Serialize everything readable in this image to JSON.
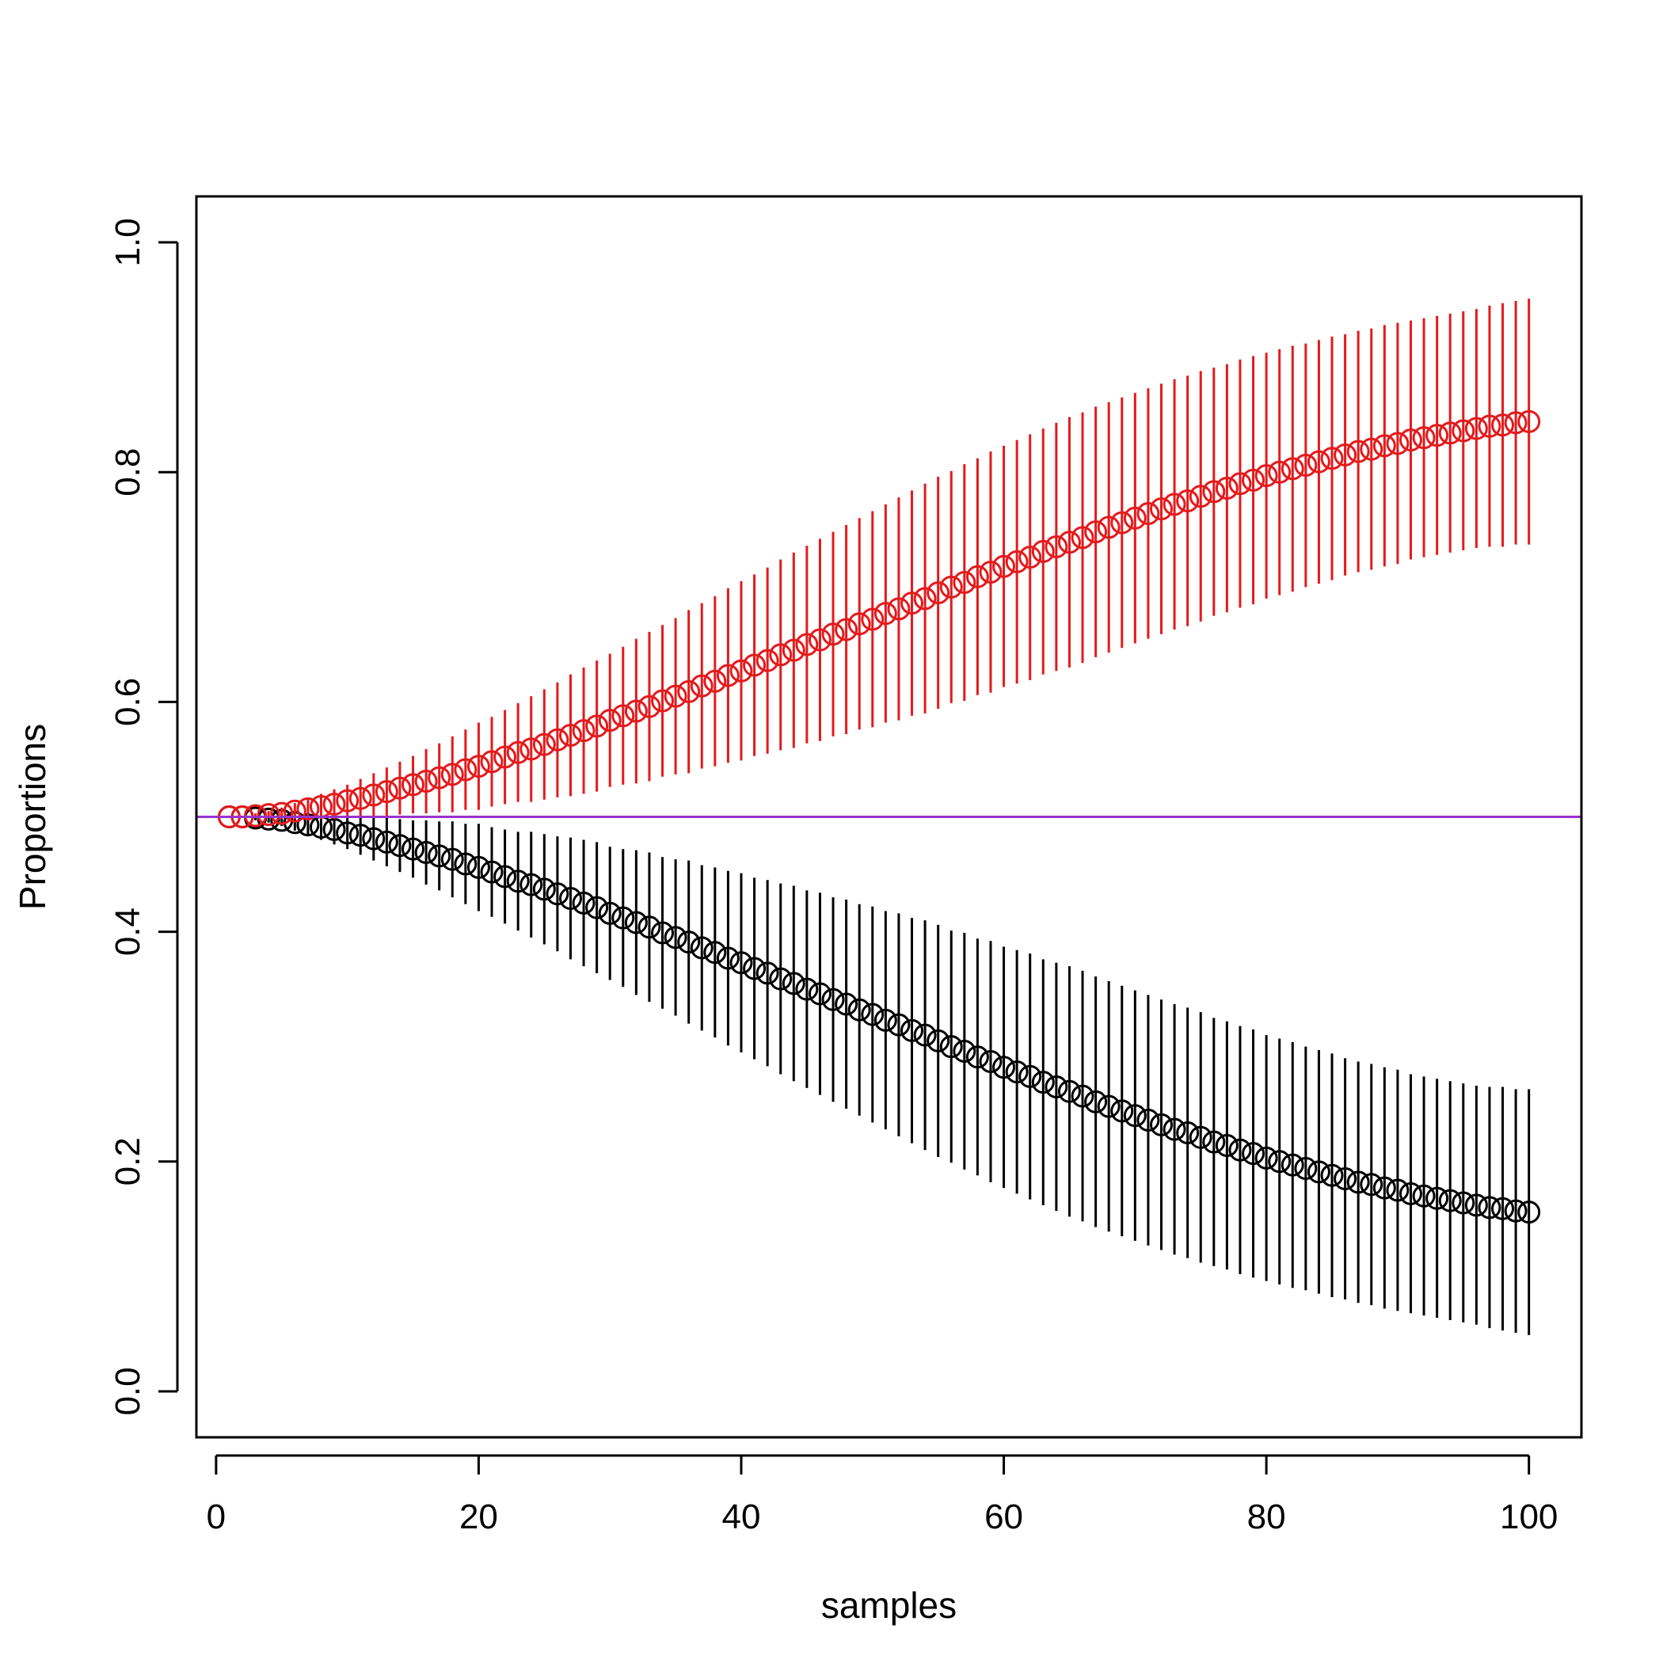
{
  "chart_data": {
    "type": "scatter",
    "xlabel": "samples",
    "ylabel": "Proportions",
    "xlim": [
      -1.5,
      104
    ],
    "ylim": [
      -0.04,
      1.04
    ],
    "x_ticks": [
      0,
      20,
      40,
      60,
      80,
      100
    ],
    "y_ticks": [
      0.0,
      0.2,
      0.4,
      0.6,
      0.8,
      1.0
    ],
    "x_tick_labels": [
      "0",
      "20",
      "40",
      "60",
      "80",
      "100"
    ],
    "y_tick_labels": [
      "0.0",
      "0.2",
      "0.4",
      "0.6",
      "0.8",
      "1.0"
    ],
    "grid": false,
    "reference_line": {
      "y": 0.5,
      "color": "#9933CC"
    },
    "x": [
      1,
      2,
      3,
      4,
      5,
      6,
      7,
      8,
      9,
      10,
      11,
      12,
      13,
      14,
      15,
      16,
      17,
      18,
      19,
      20,
      21,
      22,
      23,
      24,
      25,
      26,
      27,
      28,
      29,
      30,
      31,
      32,
      33,
      34,
      35,
      36,
      37,
      38,
      39,
      40,
      41,
      42,
      43,
      44,
      45,
      46,
      47,
      48,
      49,
      50,
      51,
      52,
      53,
      54,
      55,
      56,
      57,
      58,
      59,
      60,
      61,
      62,
      63,
      64,
      65,
      66,
      67,
      68,
      69,
      70,
      71,
      72,
      73,
      74,
      75,
      76,
      77,
      78,
      79,
      80,
      81,
      82,
      83,
      84,
      85,
      86,
      87,
      88,
      89,
      90,
      91,
      92,
      93,
      94,
      95,
      96,
      97,
      98,
      99,
      100
    ],
    "series": [
      {
        "color": "#000000",
        "values": [
          0.5,
          0.5,
          0.499,
          0.498,
          0.497,
          0.495,
          0.493,
          0.491,
          0.489,
          0.486,
          0.484,
          0.481,
          0.478,
          0.475,
          0.472,
          0.469,
          0.466,
          0.463,
          0.459,
          0.456,
          0.452,
          0.448,
          0.444,
          0.441,
          0.437,
          0.433,
          0.429,
          0.425,
          0.421,
          0.416,
          0.412,
          0.408,
          0.404,
          0.399,
          0.395,
          0.391,
          0.386,
          0.382,
          0.377,
          0.373,
          0.368,
          0.364,
          0.359,
          0.355,
          0.35,
          0.346,
          0.341,
          0.337,
          0.332,
          0.328,
          0.323,
          0.319,
          0.314,
          0.31,
          0.305,
          0.3,
          0.296,
          0.291,
          0.287,
          0.282,
          0.278,
          0.274,
          0.269,
          0.265,
          0.261,
          0.257,
          0.252,
          0.248,
          0.244,
          0.24,
          0.236,
          0.232,
          0.228,
          0.225,
          0.221,
          0.217,
          0.214,
          0.21,
          0.207,
          0.203,
          0.2,
          0.197,
          0.194,
          0.191,
          0.188,
          0.185,
          0.182,
          0.18,
          0.177,
          0.175,
          0.172,
          0.17,
          0.168,
          0.166,
          0.164,
          0.162,
          0.16,
          0.159,
          0.157,
          0.156
        ],
        "lower": [
          0.5,
          0.5,
          0.497,
          0.495,
          0.492,
          0.488,
          0.484,
          0.48,
          0.476,
          0.472,
          0.467,
          0.462,
          0.457,
          0.452,
          0.447,
          0.441,
          0.436,
          0.43,
          0.424,
          0.418,
          0.413,
          0.407,
          0.401,
          0.395,
          0.389,
          0.383,
          0.376,
          0.37,
          0.364,
          0.358,
          0.352,
          0.345,
          0.339,
          0.333,
          0.327,
          0.32,
          0.314,
          0.308,
          0.301,
          0.295,
          0.289,
          0.283,
          0.276,
          0.27,
          0.264,
          0.258,
          0.252,
          0.246,
          0.24,
          0.234,
          0.228,
          0.222,
          0.216,
          0.21,
          0.204,
          0.199,
          0.193,
          0.188,
          0.182,
          0.177,
          0.172,
          0.167,
          0.162,
          0.157,
          0.152,
          0.148,
          0.143,
          0.139,
          0.135,
          0.131,
          0.127,
          0.123,
          0.119,
          0.116,
          0.112,
          0.109,
          0.106,
          0.102,
          0.099,
          0.096,
          0.093,
          0.09,
          0.088,
          0.085,
          0.082,
          0.08,
          0.077,
          0.075,
          0.072,
          0.07,
          0.068,
          0.066,
          0.064,
          0.062,
          0.06,
          0.058,
          0.055,
          0.053,
          0.051,
          0.049
        ],
        "upper": [
          0.5,
          0.5,
          0.501,
          0.501,
          0.502,
          0.502,
          0.502,
          0.502,
          0.502,
          0.5,
          0.501,
          0.5,
          0.499,
          0.498,
          0.497,
          0.497,
          0.496,
          0.496,
          0.494,
          0.494,
          0.491,
          0.489,
          0.487,
          0.487,
          0.485,
          0.483,
          0.482,
          0.48,
          0.478,
          0.474,
          0.472,
          0.471,
          0.469,
          0.465,
          0.463,
          0.462,
          0.458,
          0.456,
          0.453,
          0.451,
          0.447,
          0.445,
          0.442,
          0.44,
          0.436,
          0.434,
          0.43,
          0.428,
          0.424,
          0.422,
          0.418,
          0.416,
          0.412,
          0.41,
          0.406,
          0.401,
          0.399,
          0.394,
          0.392,
          0.387,
          0.384,
          0.381,
          0.376,
          0.373,
          0.37,
          0.366,
          0.361,
          0.357,
          0.353,
          0.349,
          0.345,
          0.341,
          0.337,
          0.334,
          0.33,
          0.325,
          0.322,
          0.318,
          0.315,
          0.31,
          0.307,
          0.304,
          0.3,
          0.297,
          0.294,
          0.29,
          0.287,
          0.285,
          0.282,
          0.28,
          0.276,
          0.274,
          0.272,
          0.27,
          0.268,
          0.266,
          0.265,
          0.265,
          0.263,
          0.263
        ]
      },
      {
        "color": "#E41A1C",
        "values": [
          0.5,
          0.5,
          0.501,
          0.502,
          0.503,
          0.505,
          0.507,
          0.509,
          0.511,
          0.514,
          0.516,
          0.519,
          0.522,
          0.525,
          0.528,
          0.531,
          0.534,
          0.537,
          0.541,
          0.544,
          0.548,
          0.552,
          0.556,
          0.559,
          0.563,
          0.567,
          0.571,
          0.575,
          0.579,
          0.584,
          0.588,
          0.592,
          0.596,
          0.601,
          0.605,
          0.609,
          0.614,
          0.618,
          0.623,
          0.627,
          0.632,
          0.636,
          0.641,
          0.645,
          0.65,
          0.654,
          0.659,
          0.663,
          0.668,
          0.672,
          0.677,
          0.681,
          0.686,
          0.69,
          0.695,
          0.7,
          0.704,
          0.709,
          0.713,
          0.718,
          0.722,
          0.726,
          0.731,
          0.735,
          0.739,
          0.743,
          0.748,
          0.752,
          0.756,
          0.76,
          0.764,
          0.768,
          0.772,
          0.775,
          0.779,
          0.783,
          0.786,
          0.79,
          0.793,
          0.797,
          0.8,
          0.803,
          0.806,
          0.809,
          0.812,
          0.815,
          0.818,
          0.82,
          0.823,
          0.825,
          0.828,
          0.83,
          0.832,
          0.834,
          0.836,
          0.838,
          0.84,
          0.841,
          0.843,
          0.844
        ],
        "lower": [
          0.5,
          0.5,
          0.499,
          0.499,
          0.498,
          0.498,
          0.498,
          0.498,
          0.498,
          0.5,
          0.499,
          0.5,
          0.501,
          0.502,
          0.503,
          0.503,
          0.504,
          0.504,
          0.506,
          0.506,
          0.509,
          0.511,
          0.513,
          0.513,
          0.515,
          0.517,
          0.518,
          0.52,
          0.522,
          0.526,
          0.528,
          0.529,
          0.531,
          0.535,
          0.537,
          0.538,
          0.542,
          0.544,
          0.547,
          0.549,
          0.553,
          0.555,
          0.558,
          0.56,
          0.564,
          0.566,
          0.57,
          0.572,
          0.576,
          0.578,
          0.582,
          0.584,
          0.588,
          0.59,
          0.594,
          0.599,
          0.601,
          0.606,
          0.608,
          0.613,
          0.616,
          0.619,
          0.624,
          0.627,
          0.63,
          0.634,
          0.639,
          0.643,
          0.647,
          0.651,
          0.655,
          0.659,
          0.663,
          0.666,
          0.67,
          0.675,
          0.678,
          0.682,
          0.685,
          0.69,
          0.693,
          0.696,
          0.7,
          0.703,
          0.706,
          0.71,
          0.713,
          0.715,
          0.718,
          0.72,
          0.724,
          0.726,
          0.728,
          0.73,
          0.732,
          0.734,
          0.735,
          0.735,
          0.737,
          0.737
        ],
        "upper": [
          0.5,
          0.5,
          0.503,
          0.505,
          0.508,
          0.512,
          0.516,
          0.52,
          0.524,
          0.528,
          0.533,
          0.538,
          0.543,
          0.548,
          0.553,
          0.559,
          0.564,
          0.57,
          0.576,
          0.582,
          0.587,
          0.593,
          0.599,
          0.605,
          0.611,
          0.617,
          0.624,
          0.63,
          0.636,
          0.642,
          0.648,
          0.655,
          0.661,
          0.667,
          0.673,
          0.68,
          0.686,
          0.692,
          0.699,
          0.705,
          0.711,
          0.717,
          0.724,
          0.73,
          0.736,
          0.742,
          0.748,
          0.754,
          0.76,
          0.766,
          0.772,
          0.778,
          0.784,
          0.79,
          0.796,
          0.801,
          0.807,
          0.812,
          0.818,
          0.823,
          0.828,
          0.833,
          0.838,
          0.843,
          0.848,
          0.852,
          0.857,
          0.861,
          0.865,
          0.869,
          0.873,
          0.877,
          0.881,
          0.884,
          0.888,
          0.891,
          0.894,
          0.898,
          0.901,
          0.904,
          0.907,
          0.91,
          0.912,
          0.915,
          0.918,
          0.92,
          0.923,
          0.925,
          0.928,
          0.93,
          0.932,
          0.934,
          0.936,
          0.938,
          0.94,
          0.942,
          0.945,
          0.947,
          0.949,
          0.951
        ]
      }
    ]
  }
}
